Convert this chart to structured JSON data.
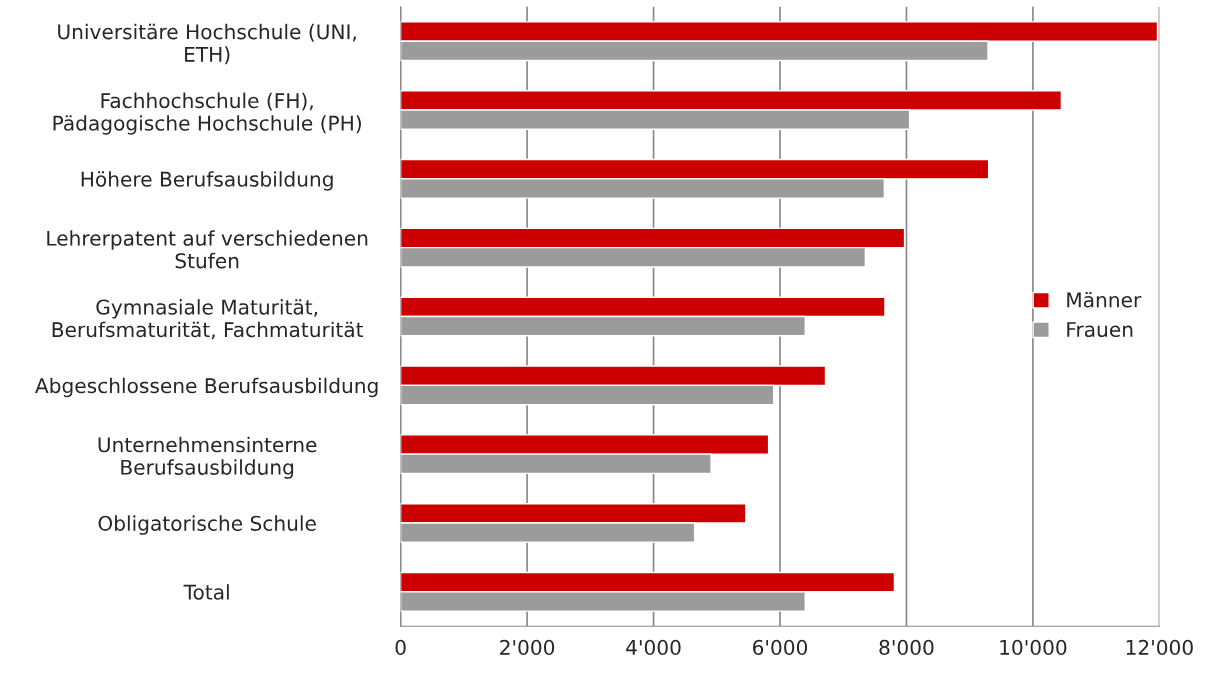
{
  "chart_data": {
    "type": "bar",
    "orientation": "horizontal",
    "categories": [
      "Universitäre Hochschule (UNI, ETH)",
      "Fachhochschule (FH), Pädagogische Hochschule (PH)",
      "Höhere Berufsausbildung",
      "Lehrerpatent auf verschiedenen Stufen",
      "Gymnasiale Maturität, Berufsmaturität, Fachmaturität",
      "Abgeschlossene Berufsausbildung",
      "Unternehmensinterne Berufsausbildung",
      "Obligatorische Schule",
      "Total"
    ],
    "series": [
      {
        "name": "Männer",
        "color": "#cc0000",
        "values": [
          11970,
          10450,
          9300,
          7970,
          7660,
          6720,
          5820,
          5460,
          7810
        ]
      },
      {
        "name": "Frauen",
        "color": "#9b9b9b",
        "values": [
          9290,
          8050,
          7650,
          7350,
          6400,
          5900,
          4910,
          4650,
          6400
        ]
      }
    ],
    "xlim": [
      0,
      12000
    ],
    "xticks": [
      {
        "value": 0,
        "label": "0"
      },
      {
        "value": 2000,
        "label": "2'000"
      },
      {
        "value": 4000,
        "label": "4'000"
      },
      {
        "value": 6000,
        "label": "6'000"
      },
      {
        "value": 8000,
        "label": "8'000"
      },
      {
        "value": 10000,
        "label": "10'000"
      },
      {
        "value": 12000,
        "label": "12'000"
      }
    ],
    "grid": "x",
    "legend": "right"
  }
}
